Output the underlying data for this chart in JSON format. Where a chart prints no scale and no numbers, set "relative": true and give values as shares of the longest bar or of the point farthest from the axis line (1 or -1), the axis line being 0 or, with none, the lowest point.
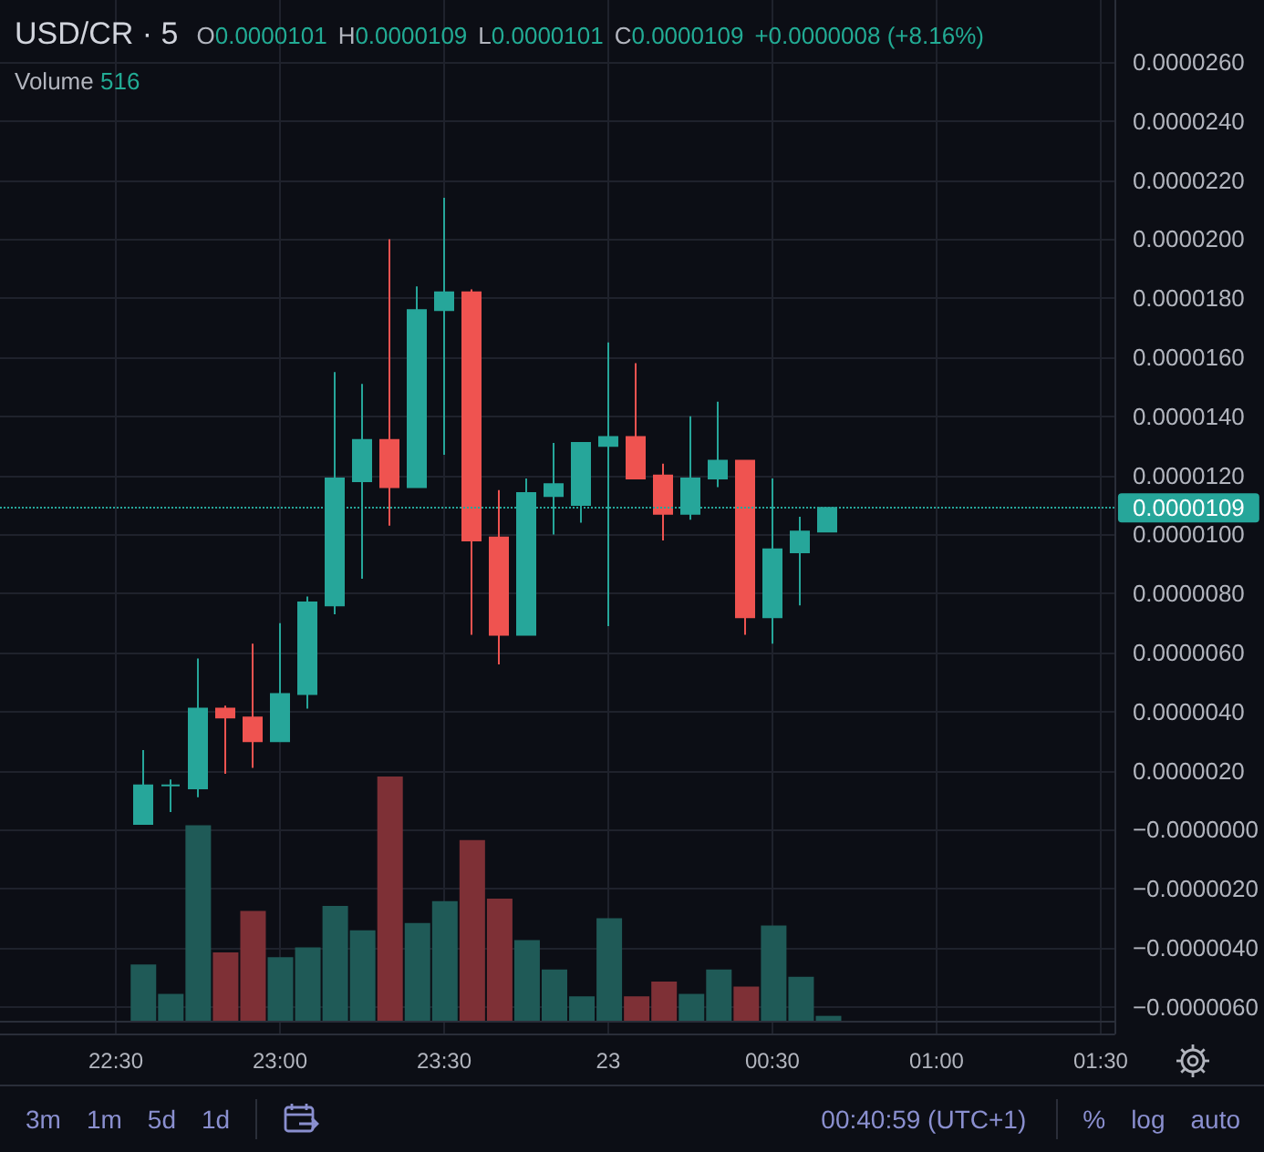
{
  "chart_data": [
    {
      "type": "candlestick",
      "title": "USD/CR · 5",
      "annotations": [
        "O0.0000101",
        "H0.0000109",
        "L0.0000101",
        "C0.0000109",
        "+0.0000008 (+8.16%)",
        "Volume 516",
        "3m",
        "1m",
        "5d",
        "1d",
        "00:40:59 (UTC+1)",
        "%",
        "log",
        "auto"
      ],
      "categories": [
        null,
        null,
        null,
        null,
        "22:30",
        null,
        null,
        null,
        null,
        null,
        "23:00",
        null,
        null,
        null,
        null,
        null,
        "23:30",
        null,
        null,
        null,
        null,
        null,
        "23",
        null,
        null,
        null,
        null,
        null,
        "00:30",
        null,
        null,
        null,
        null,
        null,
        "01:00",
        null,
        null,
        null,
        null,
        null,
        "01:30"
      ],
      "ohlc": [
        null,
        null,
        null,
        null,
        null,
        [
          2e-07,
          2.7e-06,
          2e-07,
          1.5e-06
        ],
        [
          1.5e-06,
          1.7e-06,
          6e-07,
          1.5e-06
        ],
        [
          1.4e-06,
          5.8e-06,
          1.1e-06,
          4.1e-06
        ],
        [
          4.1e-06,
          4.2e-06,
          1.9e-06,
          3.8e-06
        ],
        [
          3.8e-06,
          6.3e-06,
          2.1e-06,
          3e-06
        ],
        [
          3e-06,
          7e-06,
          3e-06,
          4.6e-06
        ],
        [
          4.6e-06,
          7.9e-06,
          4.1e-06,
          7.7e-06
        ],
        [
          7.6e-06,
          1.55e-05,
          7.3e-06,
          1.19e-05
        ],
        [
          1.18e-05,
          1.51e-05,
          8.5e-06,
          1.32e-05
        ],
        [
          1.32e-05,
          2e-05,
          1.03e-05,
          1.16e-05
        ],
        [
          1.16e-05,
          1.84e-05,
          1.16e-05,
          1.76e-05
        ],
        [
          1.76e-05,
          2.14e-05,
          1.27e-05,
          1.82e-05
        ],
        [
          1.82e-05,
          1.83e-05,
          6.6e-06,
          9.8e-06
        ],
        [
          9.9e-06,
          1.15e-05,
          5.6e-06,
          6.6e-06
        ],
        [
          6.6e-06,
          1.19e-05,
          6.6e-06,
          1.14e-05
        ],
        [
          1.13e-05,
          1.31e-05,
          1e-05,
          1.17e-05
        ],
        [
          1.1e-05,
          1.31e-05,
          1.04e-05,
          1.31e-05
        ],
        [
          1.3e-05,
          1.65e-05,
          6.9e-06,
          1.33e-05
        ],
        [
          1.33e-05,
          1.58e-05,
          1.19e-05,
          1.19e-05
        ],
        [
          1.2e-05,
          1.24e-05,
          9.8e-06,
          1.07e-05
        ],
        [
          1.07e-05,
          1.4e-05,
          1.05e-05,
          1.19e-05
        ],
        [
          1.19e-05,
          1.45e-05,
          1.16e-05,
          1.25e-05
        ],
        [
          1.25e-05,
          1.25e-05,
          6.6e-06,
          7.2e-06
        ],
        [
          7.2e-06,
          1.19e-05,
          6.3e-06,
          9.5e-06
        ],
        [
          9.4e-06,
          1.06e-05,
          7.6e-06,
          1.01e-05
        ],
        [
          1.01e-05,
          1.09e-05,
          1.01e-05,
          1.09e-05
        ],
        null,
        null,
        null,
        null,
        null,
        null,
        null,
        null,
        null,
        null
      ],
      "colors": [
        null,
        null,
        null,
        null,
        null,
        "#26a69a",
        "#26a69a",
        "#26a69a",
        "#ef5350",
        "#ef5350",
        "#26a69a",
        "#26a69a",
        "#26a69a",
        "#26a69a",
        "#ef5350",
        "#26a69a",
        "#26a69a",
        "#ef5350",
        "#ef5350",
        "#26a69a",
        "#26a69a",
        "#26a69a",
        "#26a69a",
        "#ef5350",
        "#ef5350",
        "#26a69a",
        "#26a69a",
        "#ef5350",
        "#26a69a",
        "#26a69a",
        "#26a69a",
        null,
        null,
        null,
        null,
        null,
        null,
        null,
        null,
        null,
        null
      ],
      "ylim": [
        -6.9e-06,
        2.81e-05
      ],
      "yticks": [
        {
          "value": -6e-06,
          "label": "−0.0000060"
        },
        {
          "value": -4e-06,
          "label": "−0.0000040"
        },
        {
          "value": -2e-06,
          "label": "−0.0000020"
        },
        {
          "value": 0,
          "label": "−0.0000000"
        },
        {
          "value": 2e-06,
          "label": "0.0000020"
        },
        {
          "value": 4e-06,
          "label": "0.0000040"
        },
        {
          "value": 6e-06,
          "label": "0.0000060"
        },
        {
          "value": 8e-06,
          "label": "0.0000080"
        },
        {
          "value": 1e-05,
          "label": "0.0000100"
        },
        {
          "value": 1.2e-05,
          "label": "0.0000120"
        },
        {
          "value": 1.4e-05,
          "label": "0.0000140"
        },
        {
          "value": 1.6e-05,
          "label": "0.0000160"
        },
        {
          "value": 1.8e-05,
          "label": "0.0000180"
        },
        {
          "value": 2e-05,
          "label": "0.0000200"
        },
        {
          "value": 2.2e-05,
          "label": "0.0000220"
        },
        {
          "value": 2.4e-05,
          "label": "0.0000240"
        },
        {
          "value": 2.6e-05,
          "label": "0.0000260"
        }
      ],
      "grid": true,
      "ref_lines": [
        {
          "axis": "y",
          "value": 1.09e-05,
          "label": "0.0000109",
          "color": "#26a69a",
          "line_style": "dotted"
        }
      ]
    },
    {
      "type": "bar",
      "relative": true,
      "categories": [
        null,
        null,
        null,
        null,
        null,
        null,
        null,
        null,
        null,
        null,
        null,
        null,
        null,
        null,
        null,
        null,
        null,
        null,
        null,
        null,
        null,
        null,
        null,
        null,
        null,
        null,
        null,
        null,
        null,
        null,
        null,
        null,
        null,
        null,
        null,
        null,
        null,
        null,
        null,
        null,
        null
      ],
      "values": [
        null,
        null,
        null,
        null,
        null,
        0.23,
        0.11,
        0.8,
        0.28,
        0.45,
        0.26,
        0.3,
        0.47,
        0.37,
        1,
        0.4,
        0.49,
        0.74,
        0.5,
        0.33,
        0.21,
        0.1,
        0.42,
        0.1,
        0.16,
        0.11,
        0.21,
        0.14,
        0.39,
        0.18,
        0.02,
        null,
        null,
        null,
        null,
        null,
        null,
        null,
        null,
        null,
        null
      ],
      "colors": [
        null,
        null,
        null,
        null,
        null,
        "#1f5a57",
        "#1f5a57",
        "#1f5a57",
        "#7e3036",
        "#7e3036",
        "#1f5a57",
        "#1f5a57",
        "#1f5a57",
        "#1f5a57",
        "#7e3036",
        "#1f5a57",
        "#1f5a57",
        "#7e3036",
        "#7e3036",
        "#1f5a57",
        "#1f5a57",
        "#1f5a57",
        "#1f5a57",
        "#7e3036",
        "#7e3036",
        "#1f5a57",
        "#1f5a57",
        "#7e3036",
        "#1f5a57",
        "#1f5a57",
        "#1f5a57",
        null,
        null,
        null,
        null,
        null,
        null,
        null,
        null,
        null,
        null
      ]
    }
  ]
}
